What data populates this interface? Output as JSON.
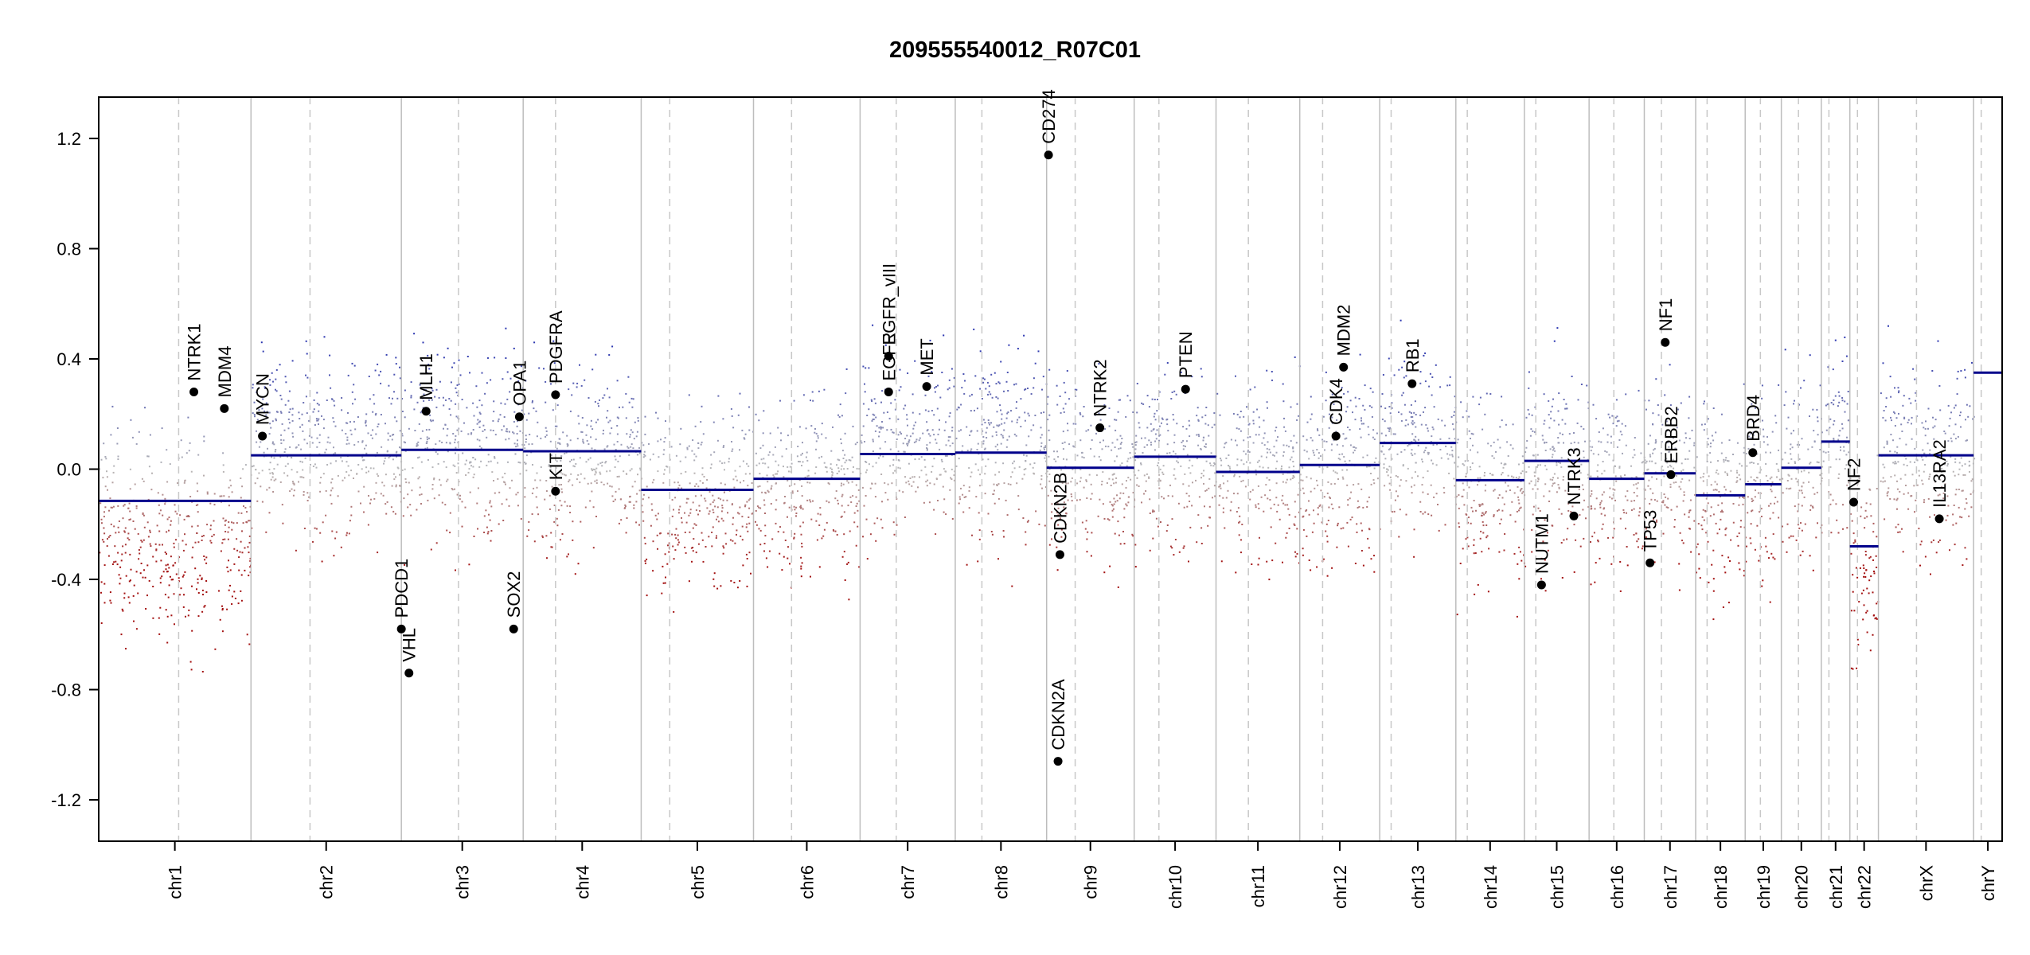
{
  "chart_data": {
    "type": "scatter",
    "title": "209555540012_R07C01",
    "ylim": [
      -1.35,
      1.35
    ],
    "y_ticks": [
      "1.2",
      "0.8",
      "0.4",
      "0.0",
      "-0.4",
      "-0.8",
      "-1.2"
    ],
    "y_tick_values": [
      1.2,
      0.8,
      0.4,
      0.0,
      -0.4,
      -0.8,
      -1.2
    ],
    "colors": {
      "gain": "#2b36b0",
      "loss": "#a31010",
      "neutral": "#b8b8b8",
      "segment": "#00008b",
      "gene": "#000000",
      "separator": "#bdbdbd",
      "centromere": "#c8c8c8"
    },
    "chromosomes": [
      {
        "name": "chr1",
        "start": 0.0,
        "end": 0.08,
        "centromere": 0.042,
        "segment": -0.115,
        "noise": 0.46,
        "skew": -0.25
      },
      {
        "name": "chr2",
        "start": 0.08,
        "end": 0.159,
        "centromere": 0.111,
        "segment": 0.05,
        "noise": 0.42,
        "skew": 0.1
      },
      {
        "name": "chr3",
        "start": 0.159,
        "end": 0.223,
        "centromere": 0.189,
        "segment": 0.07,
        "noise": 0.42,
        "skew": 0.1
      },
      {
        "name": "chr4",
        "start": 0.223,
        "end": 0.285,
        "centromere": 0.24,
        "segment": 0.065,
        "noise": 0.42,
        "skew": 0.05
      },
      {
        "name": "chr5",
        "start": 0.285,
        "end": 0.344,
        "centromere": 0.3,
        "segment": -0.075,
        "noise": 0.42,
        "skew": -0.1
      },
      {
        "name": "chr6",
        "start": 0.344,
        "end": 0.4,
        "centromere": 0.364,
        "segment": -0.035,
        "noise": 0.42,
        "skew": -0.05
      },
      {
        "name": "chr7",
        "start": 0.4,
        "end": 0.45,
        "centromere": 0.419,
        "segment": 0.055,
        "noise": 0.42,
        "skew": 0.1
      },
      {
        "name": "chr8",
        "start": 0.45,
        "end": 0.498,
        "centromere": 0.464,
        "segment": 0.06,
        "noise": 0.42,
        "skew": 0.1
      },
      {
        "name": "chr9",
        "start": 0.498,
        "end": 0.544,
        "centromere": 0.513,
        "segment": 0.005,
        "noise": 0.42,
        "skew": 0.0
      },
      {
        "name": "chr10",
        "start": 0.544,
        "end": 0.587,
        "centromere": 0.557,
        "segment": 0.045,
        "noise": 0.4,
        "skew": 0.05
      },
      {
        "name": "chr11",
        "start": 0.587,
        "end": 0.631,
        "centromere": 0.604,
        "segment": -0.01,
        "noise": 0.4,
        "skew": 0.0
      },
      {
        "name": "chr12",
        "start": 0.631,
        "end": 0.673,
        "centromere": 0.643,
        "segment": 0.015,
        "noise": 0.42,
        "skew": 0.0
      },
      {
        "name": "chr13",
        "start": 0.673,
        "end": 0.713,
        "centromere": 0.679,
        "segment": 0.095,
        "noise": 0.4,
        "skew": 0.1
      },
      {
        "name": "chr14",
        "start": 0.713,
        "end": 0.749,
        "centromere": 0.719,
        "segment": -0.04,
        "noise": 0.42,
        "skew": -0.05
      },
      {
        "name": "chr15",
        "start": 0.749,
        "end": 0.783,
        "centromere": 0.755,
        "segment": 0.03,
        "noise": 0.42,
        "skew": 0.0
      },
      {
        "name": "chr16",
        "start": 0.783,
        "end": 0.812,
        "centromere": 0.796,
        "segment": -0.035,
        "noise": 0.42,
        "skew": -0.05
      },
      {
        "name": "chr17",
        "start": 0.812,
        "end": 0.839,
        "centromere": 0.821,
        "segment": -0.015,
        "noise": 0.42,
        "skew": 0.0
      },
      {
        "name": "chr18",
        "start": 0.839,
        "end": 0.865,
        "centromere": 0.845,
        "segment": -0.095,
        "noise": 0.42,
        "skew": -0.1
      },
      {
        "name": "chr19",
        "start": 0.865,
        "end": 0.884,
        "centromere": 0.873,
        "segment": -0.055,
        "noise": 0.42,
        "skew": -0.05
      },
      {
        "name": "chr20",
        "start": 0.884,
        "end": 0.905,
        "centromere": 0.893,
        "segment": 0.005,
        "noise": 0.42,
        "skew": 0.0
      },
      {
        "name": "chr21",
        "start": 0.905,
        "end": 0.92,
        "centromere": 0.909,
        "segment": 0.1,
        "noise": 0.42,
        "skew": 0.1
      },
      {
        "name": "chr22",
        "start": 0.92,
        "end": 0.935,
        "centromere": 0.924,
        "segment": -0.28,
        "noise": 0.44,
        "skew": -0.35
      },
      {
        "name": "chrX",
        "start": 0.935,
        "end": 0.985,
        "centromere": 0.955,
        "segment": 0.05,
        "noise": 0.42,
        "skew": 0.05
      },
      {
        "name": "chrY",
        "start": 0.985,
        "end": 1.0,
        "centromere": 0.989,
        "segment": 0.35,
        "noise": 0.0,
        "skew": 0.0
      }
    ],
    "genes": [
      {
        "name": "NTRK1",
        "x": 0.05,
        "y": 0.28
      },
      {
        "name": "MDM4",
        "x": 0.066,
        "y": 0.22
      },
      {
        "name": "MYCN",
        "x": 0.086,
        "y": 0.12
      },
      {
        "name": "PDCD1",
        "x": 0.159,
        "y": -0.58
      },
      {
        "name": "VHL",
        "x": 0.163,
        "y": -0.74
      },
      {
        "name": "MLH1",
        "x": 0.172,
        "y": 0.21
      },
      {
        "name": "SOX2",
        "x": 0.218,
        "y": -0.58
      },
      {
        "name": "OPA1",
        "x": 0.221,
        "y": 0.19
      },
      {
        "name": "PDGFRA",
        "x": 0.24,
        "y": 0.27
      },
      {
        "name": "KIT",
        "x": 0.24,
        "y": -0.08
      },
      {
        "name": "EGFR",
        "x": 0.415,
        "y": 0.28
      },
      {
        "name": "EGFR_vIII",
        "x": 0.415,
        "y": 0.41
      },
      {
        "name": "MET",
        "x": 0.435,
        "y": 0.3
      },
      {
        "name": "CD274",
        "x": 0.499,
        "y": 1.14
      },
      {
        "name": "CDKN2A",
        "x": 0.504,
        "y": -1.06
      },
      {
        "name": "CDKN2B",
        "x": 0.505,
        "y": -0.31
      },
      {
        "name": "NTRK2",
        "x": 0.526,
        "y": 0.15
      },
      {
        "name": "PTEN",
        "x": 0.571,
        "y": 0.29
      },
      {
        "name": "CDK4",
        "x": 0.65,
        "y": 0.12
      },
      {
        "name": "MDM2",
        "x": 0.654,
        "y": 0.37
      },
      {
        "name": "RB1",
        "x": 0.69,
        "y": 0.31
      },
      {
        "name": "NUTM1",
        "x": 0.758,
        "y": -0.42
      },
      {
        "name": "NTRK3",
        "x": 0.775,
        "y": -0.17
      },
      {
        "name": "TP53",
        "x": 0.815,
        "y": -0.34
      },
      {
        "name": "NF1",
        "x": 0.823,
        "y": 0.46
      },
      {
        "name": "ERBB2",
        "x": 0.826,
        "y": -0.02
      },
      {
        "name": "BRD4",
        "x": 0.869,
        "y": 0.06
      },
      {
        "name": "NF2",
        "x": 0.922,
        "y": -0.12
      },
      {
        "name": "IL13RA2",
        "x": 0.967,
        "y": -0.18
      }
    ]
  }
}
